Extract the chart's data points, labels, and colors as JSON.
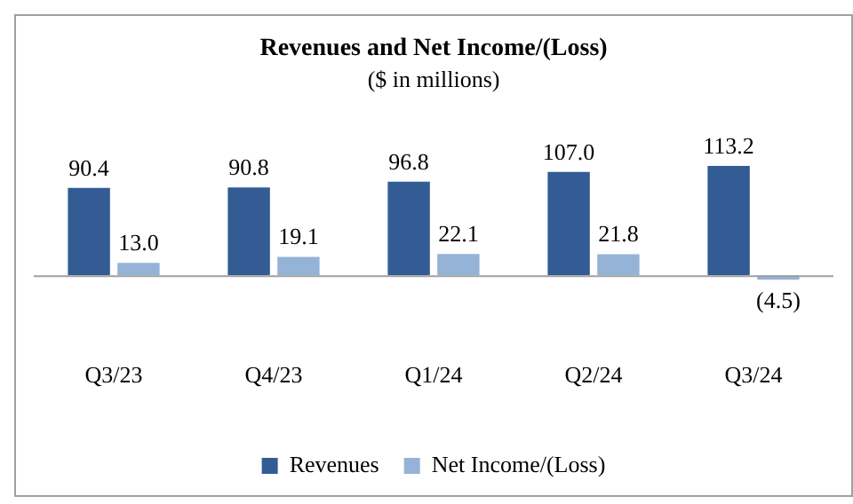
{
  "chart_data": {
    "type": "bar",
    "title": "Revenues and Net Income/(Loss)",
    "subtitle": "($ in millions)",
    "categories": [
      "Q3/23",
      "Q4/23",
      "Q1/24",
      "Q2/24",
      "Q3/24"
    ],
    "series": [
      {
        "name": "Revenues",
        "color": "#335c94",
        "values": [
          90.4,
          90.8,
          96.8,
          107.0,
          113.2
        ],
        "value_labels": [
          "90.4",
          "90.8",
          "96.8",
          "107.0",
          "113.2"
        ]
      },
      {
        "name": "Net Income/(Loss)",
        "color": "#95b3d7",
        "values": [
          13.0,
          19.1,
          22.1,
          21.8,
          -4.5
        ],
        "value_labels": [
          "13.0",
          "19.1",
          "22.1",
          "21.8",
          "(4.5)"
        ]
      }
    ],
    "tick_labels": "x",
    "legend": "bottom",
    "grid": false
  }
}
